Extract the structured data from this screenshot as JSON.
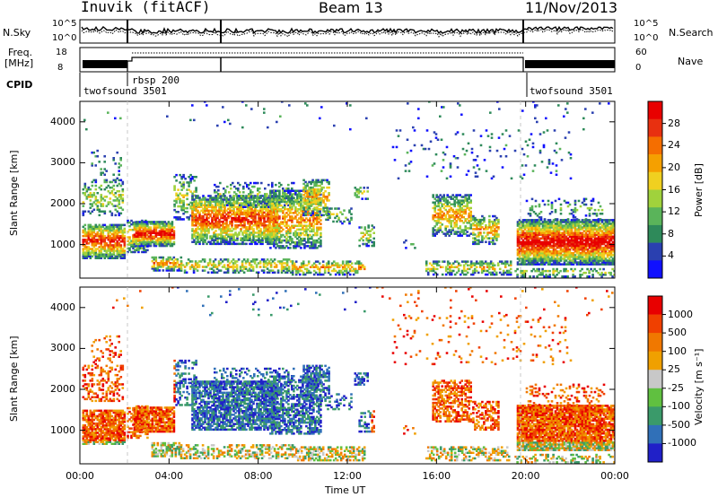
{
  "header": {
    "station": "Inuvik (fitACF)",
    "beam": "Beam 13",
    "date": "11/Nov/2013"
  },
  "params": {
    "nsky_label": "N.Sky",
    "nsearch_label": "N.Search",
    "freq_label_1": "Freq.",
    "freq_label_2": "[MHz]",
    "nave_label": "Nave",
    "cpid_label": "CPID",
    "nsky_ticks": [
      "10^5",
      "10^0"
    ],
    "nsearch_ticks": [
      "10^5",
      "10^0"
    ],
    "freq_ticks": [
      "18",
      "8"
    ],
    "nave_ticks": [
      "60",
      "0"
    ]
  },
  "cpid_segments": [
    {
      "label": "twofsound 3501",
      "start_hour": 0.0,
      "end_hour": 2.0
    },
    {
      "label": "rbsp 200",
      "start_hour": 2.0,
      "end_hour": 19.5
    },
    {
      "label": "twofsound 3501",
      "start_hour": 19.5,
      "end_hour": 24.0
    }
  ],
  "chart_data": [
    {
      "type": "heatmap",
      "quantity": "Power",
      "ylabel": "Slant Range [km]",
      "xlabel": "",
      "x_ticks": [
        "00:00",
        "04:00",
        "08:00",
        "12:00",
        "16:00",
        "20:00",
        "00:00"
      ],
      "y_ticks": [
        "1000",
        "2000",
        "3000",
        "4000"
      ],
      "colorbar_label": "Power [dB]",
      "colorbar_ticks": [
        "4",
        "8",
        "12",
        "16",
        "20",
        "24",
        "28"
      ],
      "colorbar_colors": [
        "#1010ff",
        "#2a40b0",
        "#2e8a5a",
        "#5ab45a",
        "#a0d23c",
        "#f0d020",
        "#f5a000",
        "#f56e00",
        "#e83010",
        "#e80000"
      ],
      "xlim_hours": [
        0,
        24
      ],
      "ylim_km": [
        180,
        4500
      ]
    },
    {
      "type": "heatmap",
      "quantity": "Velocity",
      "ylabel": "Slant Range [km]",
      "xlabel": "Time UT",
      "x_ticks": [
        "00:00",
        "04:00",
        "08:00",
        "12:00",
        "16:00",
        "20:00",
        "00:00"
      ],
      "y_ticks": [
        "1000",
        "2000",
        "3000",
        "4000"
      ],
      "colorbar_label": "Velocity [m s⁻¹]",
      "colorbar_ticks": [
        "1000",
        "500",
        "100",
        "25",
        "-25",
        "-100",
        "-500",
        "-1000"
      ],
      "colorbar_colors": [
        "#2020c8",
        "#3070b8",
        "#3a9a6a",
        "#60c040",
        "#c8c8c8",
        "#f0a000",
        "#f07800",
        "#f04000",
        "#e80000"
      ],
      "xlim_hours": [
        0,
        24
      ],
      "ylim_km": [
        180,
        4500
      ]
    }
  ]
}
